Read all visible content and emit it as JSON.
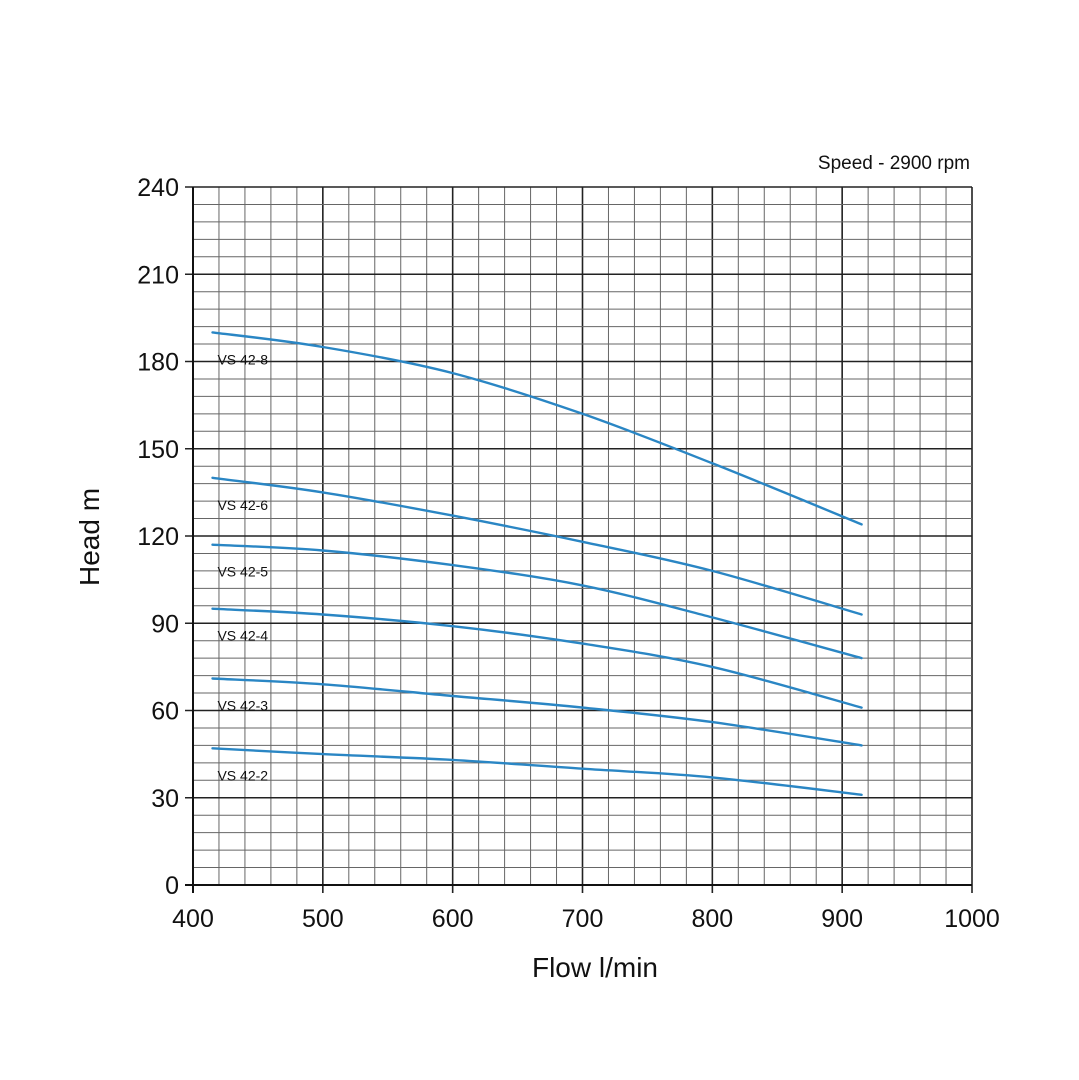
{
  "chart_data": {
    "type": "line",
    "title": "",
    "note": "Speed - 2900 rpm",
    "xlabel": "Flow l/min",
    "ylabel": "Head m",
    "xlim": [
      400,
      1000
    ],
    "ylim": [
      0,
      240
    ],
    "x_ticks": [
      400,
      500,
      600,
      700,
      800,
      900,
      1000
    ],
    "y_ticks": [
      0,
      30,
      60,
      90,
      120,
      150,
      180,
      210,
      240
    ],
    "x_tick_labels": [
      "400",
      "500",
      "600",
      "700",
      "800",
      "900",
      "1000"
    ],
    "y_tick_labels": [
      "0",
      "30",
      "60",
      "90",
      "120",
      "150",
      "180",
      "210",
      "240"
    ],
    "x_minor_step": 20,
    "y_minor_step": 6,
    "grid": true,
    "line_color": "#2a86c4",
    "series": [
      {
        "name": "VS 42-8",
        "x": [
          415,
          500,
          600,
          700,
          800,
          915
        ],
        "y": [
          190,
          185,
          176,
          162,
          145,
          124
        ]
      },
      {
        "name": "VS 42-6",
        "x": [
          415,
          500,
          600,
          700,
          800,
          915
        ],
        "y": [
          140,
          135,
          127,
          118,
          108,
          93
        ]
      },
      {
        "name": "VS 42-5",
        "x": [
          415,
          500,
          600,
          700,
          800,
          915
        ],
        "y": [
          117,
          115,
          110,
          103,
          92,
          78
        ]
      },
      {
        "name": "VS 42-4",
        "x": [
          415,
          500,
          600,
          700,
          800,
          915
        ],
        "y": [
          95,
          93,
          89,
          83,
          75,
          61
        ]
      },
      {
        "name": "VS 42-3",
        "x": [
          415,
          500,
          600,
          700,
          800,
          915
        ],
        "y": [
          71,
          69,
          65,
          61,
          56,
          48
        ]
      },
      {
        "name": "VS 42-2",
        "x": [
          415,
          500,
          600,
          700,
          800,
          915
        ],
        "y": [
          47,
          45,
          43,
          40,
          37,
          31
        ]
      }
    ]
  }
}
